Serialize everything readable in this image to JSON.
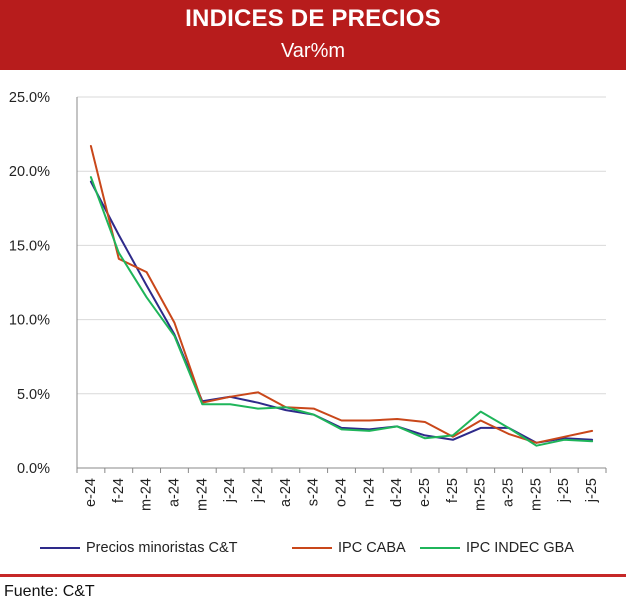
{
  "header": {
    "title": "INDICES DE PRECIOS",
    "subtitle": "Var%m",
    "bg_color": "#b71c1c"
  },
  "chart_data": {
    "type": "line",
    "categories": [
      "e-24",
      "f-24",
      "m-24",
      "a-24",
      "m-24",
      "j-24",
      "j-24",
      "a-24",
      "s-24",
      "o-24",
      "n-24",
      "d-24",
      "e-25",
      "f-25",
      "m-25",
      "a-25",
      "m-25",
      "j-25",
      "j-25"
    ],
    "series": [
      {
        "name": "Precios minoristas C&T",
        "color": "#2e2a8a",
        "values": [
          19.3,
          15.7,
          12.3,
          9.0,
          4.5,
          4.8,
          4.4,
          3.9,
          3.6,
          2.7,
          2.6,
          2.8,
          2.2,
          1.9,
          2.7,
          2.7,
          1.7,
          2.0,
          1.9
        ]
      },
      {
        "name": "IPC CABA",
        "color": "#c9471a",
        "values": [
          21.7,
          14.1,
          13.2,
          9.8,
          4.4,
          4.8,
          5.1,
          4.1,
          4.0,
          3.2,
          3.2,
          3.3,
          3.1,
          2.1,
          3.2,
          2.3,
          1.7,
          2.1,
          2.5
        ]
      },
      {
        "name": "IPC INDEC GBA",
        "color": "#1fb55a",
        "values": [
          19.6,
          14.5,
          11.5,
          8.9,
          4.3,
          4.3,
          4.0,
          4.1,
          3.6,
          2.6,
          2.5,
          2.8,
          2.0,
          2.2,
          3.8,
          2.7,
          1.5,
          1.9,
          1.8
        ]
      }
    ],
    "y_ticks": [
      "0.0%",
      "5.0%",
      "10.0%",
      "15.0%",
      "20.0%",
      "25.0%"
    ],
    "ylim": [
      0,
      25
    ],
    "grid": true,
    "legend_position": "bottom"
  },
  "source": "Fuente: C&T",
  "divider_color": "#c62828"
}
